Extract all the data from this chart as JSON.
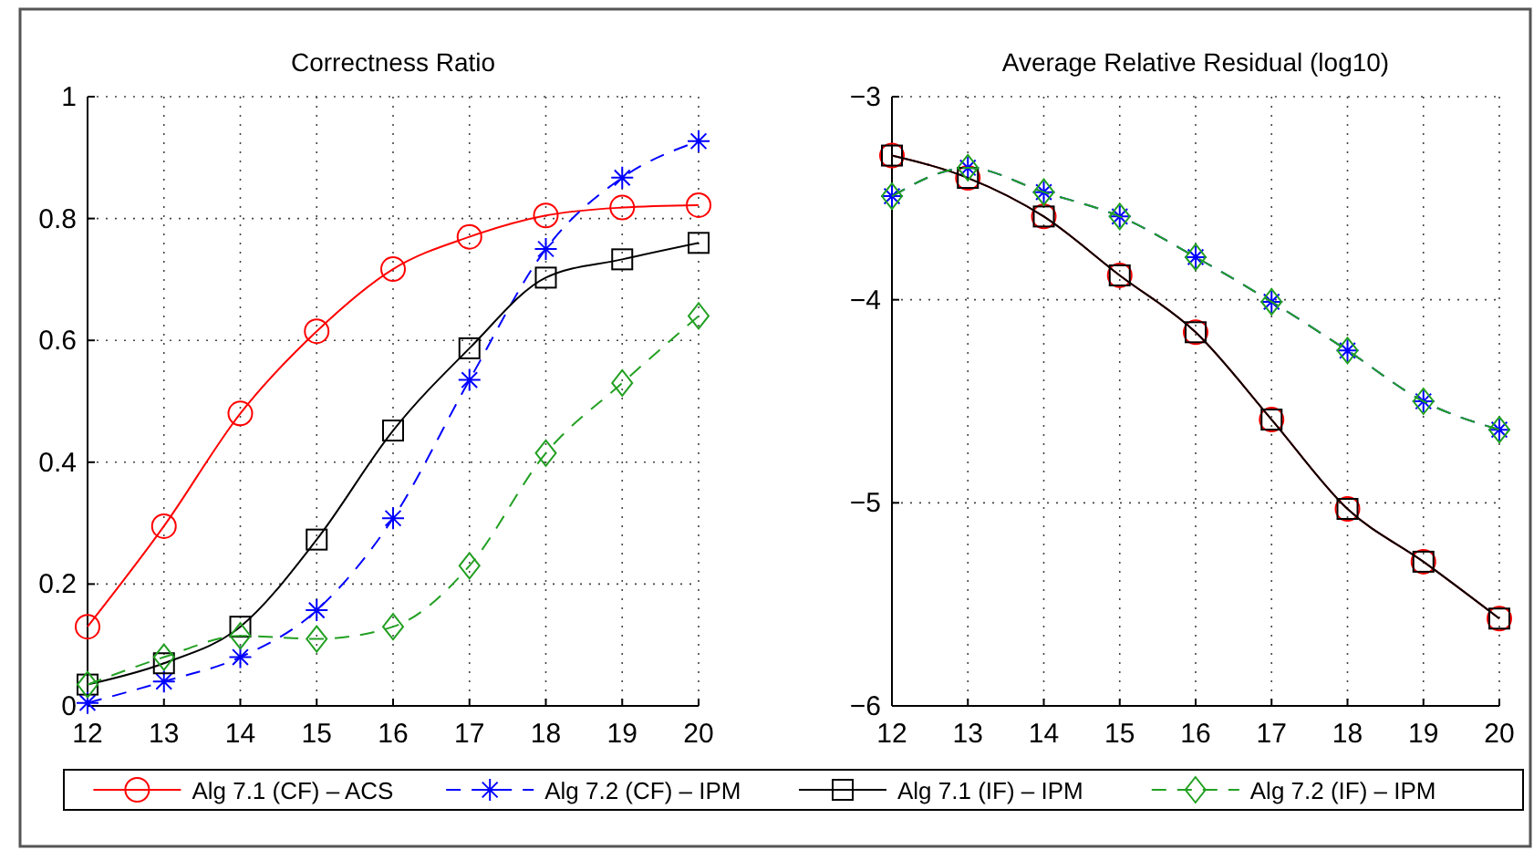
{
  "chart_data": [
    {
      "type": "line",
      "title": "Correctness Ratio",
      "x": [
        12,
        13,
        14,
        15,
        16,
        17,
        18,
        19,
        20
      ],
      "xlim": [
        12,
        20
      ],
      "xticks": [
        12,
        13,
        14,
        15,
        16,
        17,
        18,
        19,
        20
      ],
      "ylim": [
        0,
        1
      ],
      "yticks": [
        0,
        0.2,
        0.4,
        0.6,
        0.8,
        1
      ],
      "grid": true,
      "legend": "bottom",
      "series": [
        {
          "name": "Alg 7.1 (CF) – ACS",
          "color": "#ff0000",
          "marker": "circle",
          "line_style": "solid",
          "values": [
            0.13,
            0.295,
            0.48,
            0.615,
            0.717,
            0.77,
            0.805,
            0.818,
            0.822
          ]
        },
        {
          "name": "Alg 7.2 (CF) – IPM",
          "color": "#0000ff",
          "marker": "cross",
          "line_style": "dashed",
          "values": [
            0.005,
            0.04,
            0.08,
            0.157,
            0.308,
            0.535,
            0.75,
            0.867,
            0.927
          ]
        },
        {
          "name": "Alg 7.1 (IF) – IPM",
          "color": "#000000",
          "marker": "square",
          "line_style": "solid",
          "values": [
            0.035,
            0.07,
            0.13,
            0.273,
            0.452,
            0.587,
            0.703,
            0.733,
            0.76
          ]
        },
        {
          "name": "Alg 7.2 (IF) – IPM",
          "color": "#22a022",
          "marker": "diamond",
          "line_style": "dashed",
          "values": [
            0.035,
            0.08,
            0.115,
            0.11,
            0.13,
            0.23,
            0.415,
            0.53,
            0.64
          ]
        }
      ]
    },
    {
      "type": "line",
      "title": "Average Relative Residual (log10)",
      "x": [
        12,
        13,
        14,
        15,
        16,
        17,
        18,
        19,
        20
      ],
      "xlim": [
        12,
        20
      ],
      "xticks": [
        12,
        13,
        14,
        15,
        16,
        17,
        18,
        19,
        20
      ],
      "ylim": [
        -6,
        -3
      ],
      "yticks": [
        {
          "value": -6,
          "label": "−6"
        },
        {
          "value": -5,
          "label": "−5"
        },
        {
          "value": -4,
          "label": "−4"
        },
        {
          "value": -3,
          "label": "−3"
        }
      ],
      "grid": true,
      "series": [
        {
          "color": "#ff0000",
          "marker": "circle",
          "line_style": "solid",
          "values": [
            -3.29,
            -3.4,
            -3.59,
            -3.88,
            -4.16,
            -4.59,
            -5.03,
            -5.29,
            -5.57
          ]
        },
        {
          "color": "#0000ff",
          "marker": "cross",
          "line_style": "dashed",
          "values": [
            -3.49,
            -3.35,
            -3.47,
            -3.59,
            -3.79,
            -4.01,
            -4.25,
            -4.5,
            -4.64
          ]
        },
        {
          "color": "#000000",
          "marker": "square",
          "line_style": "solid",
          "values": [
            -3.29,
            -3.4,
            -3.59,
            -3.88,
            -4.16,
            -4.59,
            -5.03,
            -5.29,
            -5.57
          ]
        },
        {
          "color": "#22a022",
          "marker": "diamond",
          "line_style": "dashed",
          "values": [
            -3.49,
            -3.35,
            -3.47,
            -3.59,
            -3.79,
            -4.01,
            -4.25,
            -4.5,
            -4.64
          ]
        }
      ]
    }
  ]
}
